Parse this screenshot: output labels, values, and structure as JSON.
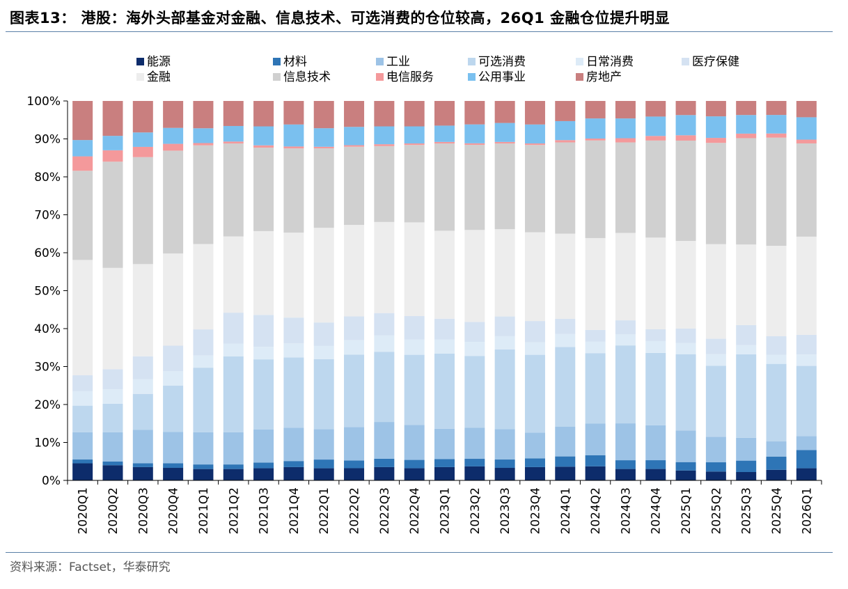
{
  "title": "图表13： 港股：海外头部基金对金融、信息技术、可选消费的仓位较高，26Q1 金融仓位提升明显",
  "source": "资料来源：Factset，华泰研究",
  "chart_data": {
    "type": "bar",
    "stacked": true,
    "ylim": [
      0,
      100
    ],
    "yticks": [
      "0%",
      "10%",
      "20%",
      "30%",
      "40%",
      "50%",
      "60%",
      "70%",
      "80%",
      "90%",
      "100%"
    ],
    "legend_position": "top",
    "categories": [
      "2020Q1",
      "2020Q2",
      "2020Q3",
      "2020Q4",
      "2021Q1",
      "2021Q2",
      "2021Q3",
      "2021Q4",
      "2022Q1",
      "2022Q2",
      "2022Q3",
      "2022Q4",
      "2023Q1",
      "2023Q2",
      "2023Q3",
      "2023Q4",
      "2024Q1",
      "2024Q2",
      "2024Q3",
      "2024Q4",
      "2025Q1",
      "2025Q2",
      "2025Q3",
      "2025Q4",
      "2026Q1"
    ],
    "series": [
      {
        "name": "能源",
        "color": "#0d2c6b",
        "values": [
          4.5,
          4,
          3.5,
          3.3,
          3,
          3,
          3.2,
          3.5,
          3.2,
          3.2,
          3.5,
          3.2,
          3.5,
          3.7,
          3.3,
          3.5,
          3.6,
          3.7,
          3,
          3,
          2.6,
          2.3,
          2.2,
          2.8,
          3.2
        ]
      },
      {
        "name": "材料",
        "color": "#2e75b6",
        "values": [
          1,
          1,
          1,
          1.2,
          1.2,
          1.2,
          1.5,
          1.6,
          2.3,
          2,
          2.2,
          2.2,
          2.1,
          2,
          2.2,
          2.3,
          2.7,
          2.9,
          2.3,
          2.3,
          2.2,
          2.4,
          3,
          3.5,
          4.8
        ]
      },
      {
        "name": "工业",
        "color": "#9dc3e6",
        "values": [
          7.2,
          7.7,
          8.8,
          8.3,
          8.5,
          8.5,
          8.7,
          8.8,
          8,
          8.8,
          9.7,
          9.2,
          8,
          8.2,
          8,
          6.8,
          7.8,
          8.4,
          9.7,
          9.2,
          8.3,
          6.6,
          6,
          4,
          3.7
        ]
      },
      {
        "name": "可选消费",
        "color": "#bdd7ee",
        "values": [
          7,
          7.5,
          9.5,
          12.2,
          17,
          20,
          18.5,
          18.5,
          18.5,
          19,
          18.5,
          18.5,
          19.8,
          19,
          21,
          20.5,
          21,
          18.5,
          20.5,
          19,
          20,
          18.5,
          22,
          20.5,
          18.5
        ]
      },
      {
        "name": "日常消费",
        "color": "#ddebf7",
        "values": [
          3.8,
          3.8,
          3.9,
          3.8,
          3.2,
          3.3,
          3.3,
          3.7,
          3.5,
          3.8,
          4.3,
          4,
          3.7,
          3.7,
          3.5,
          3.3,
          3.4,
          3,
          2.9,
          3.1,
          2.9,
          3,
          2.4,
          2.4,
          3
        ]
      },
      {
        "name": "医疗保健",
        "color": "#d5e2f2",
        "values": [
          4.2,
          5.3,
          6,
          6.7,
          6.9,
          8.2,
          8.4,
          6.8,
          6.2,
          6.2,
          5.9,
          6.2,
          5.5,
          5.3,
          5.2,
          5.6,
          4,
          3.1,
          3.7,
          3.1,
          3.8,
          4,
          5.3,
          4.9,
          5.2
        ]
      },
      {
        "name": "金融",
        "color": "#ededed",
        "values": [
          30.4,
          26.7,
          24.3,
          24.3,
          22.5,
          20.1,
          22.1,
          22.4,
          25,
          24,
          24,
          24.7,
          23.2,
          24.3,
          23,
          23.4,
          22.4,
          24.2,
          23,
          24.1,
          23,
          24.6,
          21.2,
          23.9,
          25.9
        ]
      },
      {
        "name": "信息技术",
        "color": "#d0d0d0",
        "values": [
          23.5,
          28,
          28.2,
          27.1,
          26,
          24.5,
          22,
          22.2,
          21,
          20.5,
          20,
          20.4,
          23,
          22.5,
          22.6,
          23,
          24,
          25.7,
          23.8,
          25.5,
          26.3,
          26.3,
          28,
          28.6,
          24.6
        ]
      },
      {
        "name": "电信服务",
        "color": "#f4999b",
        "values": [
          3.8,
          3,
          2.7,
          1.8,
          0.6,
          0.5,
          0.6,
          0.5,
          0.4,
          0.4,
          0.5,
          0.4,
          0.4,
          0.4,
          0.4,
          0.4,
          0.6,
          0.5,
          1.1,
          1.2,
          1.4,
          1.3,
          1.2,
          1.1,
          1
        ]
      },
      {
        "name": "公用事业",
        "color": "#7ac0ef",
        "values": [
          4.3,
          3.8,
          3.8,
          4.2,
          3.9,
          4.1,
          5,
          5.8,
          4.9,
          4.8,
          4.7,
          4.5,
          4.3,
          5,
          5,
          5,
          5,
          5.3,
          5.2,
          5.1,
          5.3,
          5.6,
          4.9,
          4.9,
          5.9
        ]
      },
      {
        "name": "房地产",
        "color": "#c97f7f",
        "values": [
          10.3,
          9.2,
          8.3,
          7.1,
          7.2,
          6.6,
          6.7,
          6.2,
          7.2,
          6.8,
          6.7,
          6.7,
          6.5,
          6.2,
          5.8,
          6.2,
          5.3,
          4.6,
          4.6,
          4.1,
          3.7,
          4,
          3.7,
          3.7,
          4.3
        ]
      }
    ]
  }
}
